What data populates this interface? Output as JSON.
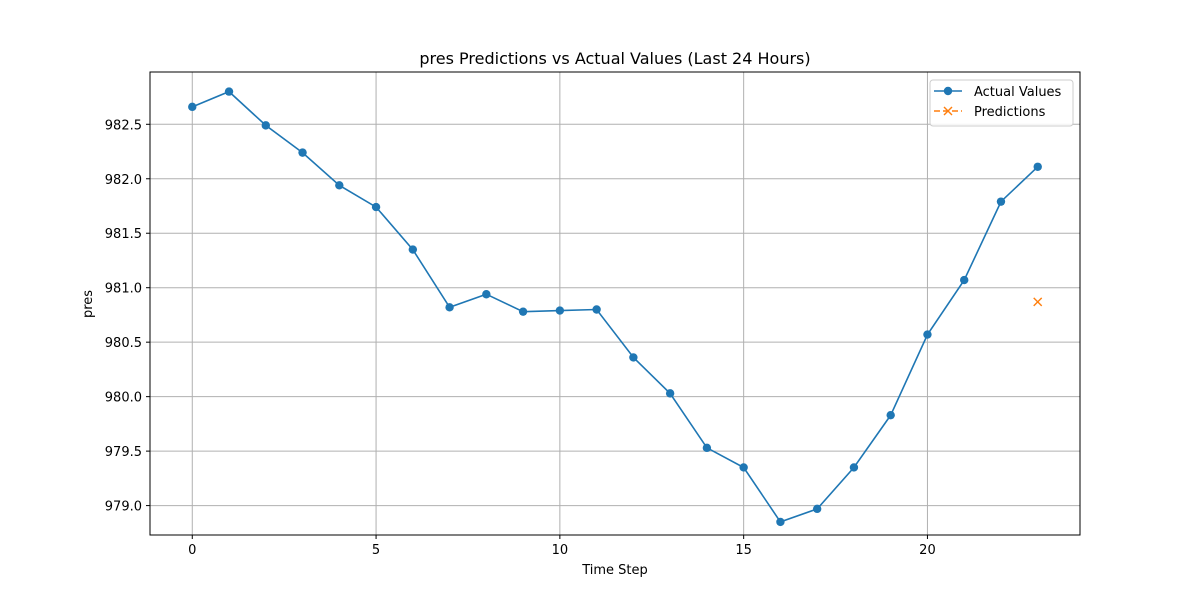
{
  "chart_data": {
    "type": "line",
    "title": "pres Predictions vs Actual Values (Last 24 Hours)",
    "xlabel": "Time Step",
    "ylabel": "pres",
    "xlim": [
      -1.15,
      24.15
    ],
    "ylim": [
      978.73,
      982.98
    ],
    "xticks": [
      0,
      5,
      10,
      15,
      20
    ],
    "xtick_labels": [
      "0",
      "5",
      "10",
      "15",
      "20"
    ],
    "yticks": [
      979.0,
      979.5,
      980.0,
      980.5,
      981.0,
      981.5,
      982.0,
      982.5
    ],
    "ytick_labels": [
      "979.0",
      "979.5",
      "980.0",
      "980.5",
      "981.0",
      "981.5",
      "982.0",
      "982.5"
    ],
    "grid": true,
    "legend_position": "top-right",
    "series": [
      {
        "name": "Actual Values",
        "color": "#1f77b4",
        "style": "solid",
        "marker": "circle",
        "x": [
          0,
          1,
          2,
          3,
          4,
          5,
          6,
          7,
          8,
          9,
          10,
          11,
          12,
          13,
          14,
          15,
          16,
          17,
          18,
          19,
          20,
          21,
          22,
          23
        ],
        "values": [
          982.66,
          982.8,
          982.49,
          982.24,
          981.94,
          981.74,
          981.35,
          980.82,
          980.94,
          980.78,
          980.79,
          980.8,
          980.36,
          980.03,
          979.53,
          979.35,
          978.85,
          978.97,
          979.35,
          979.83,
          980.57,
          981.07,
          981.79,
          982.11
        ]
      },
      {
        "name": "Predictions",
        "color": "#ff7f0e",
        "style": "dashed",
        "marker": "x",
        "x": [
          23
        ],
        "values": [
          980.87
        ]
      }
    ]
  }
}
